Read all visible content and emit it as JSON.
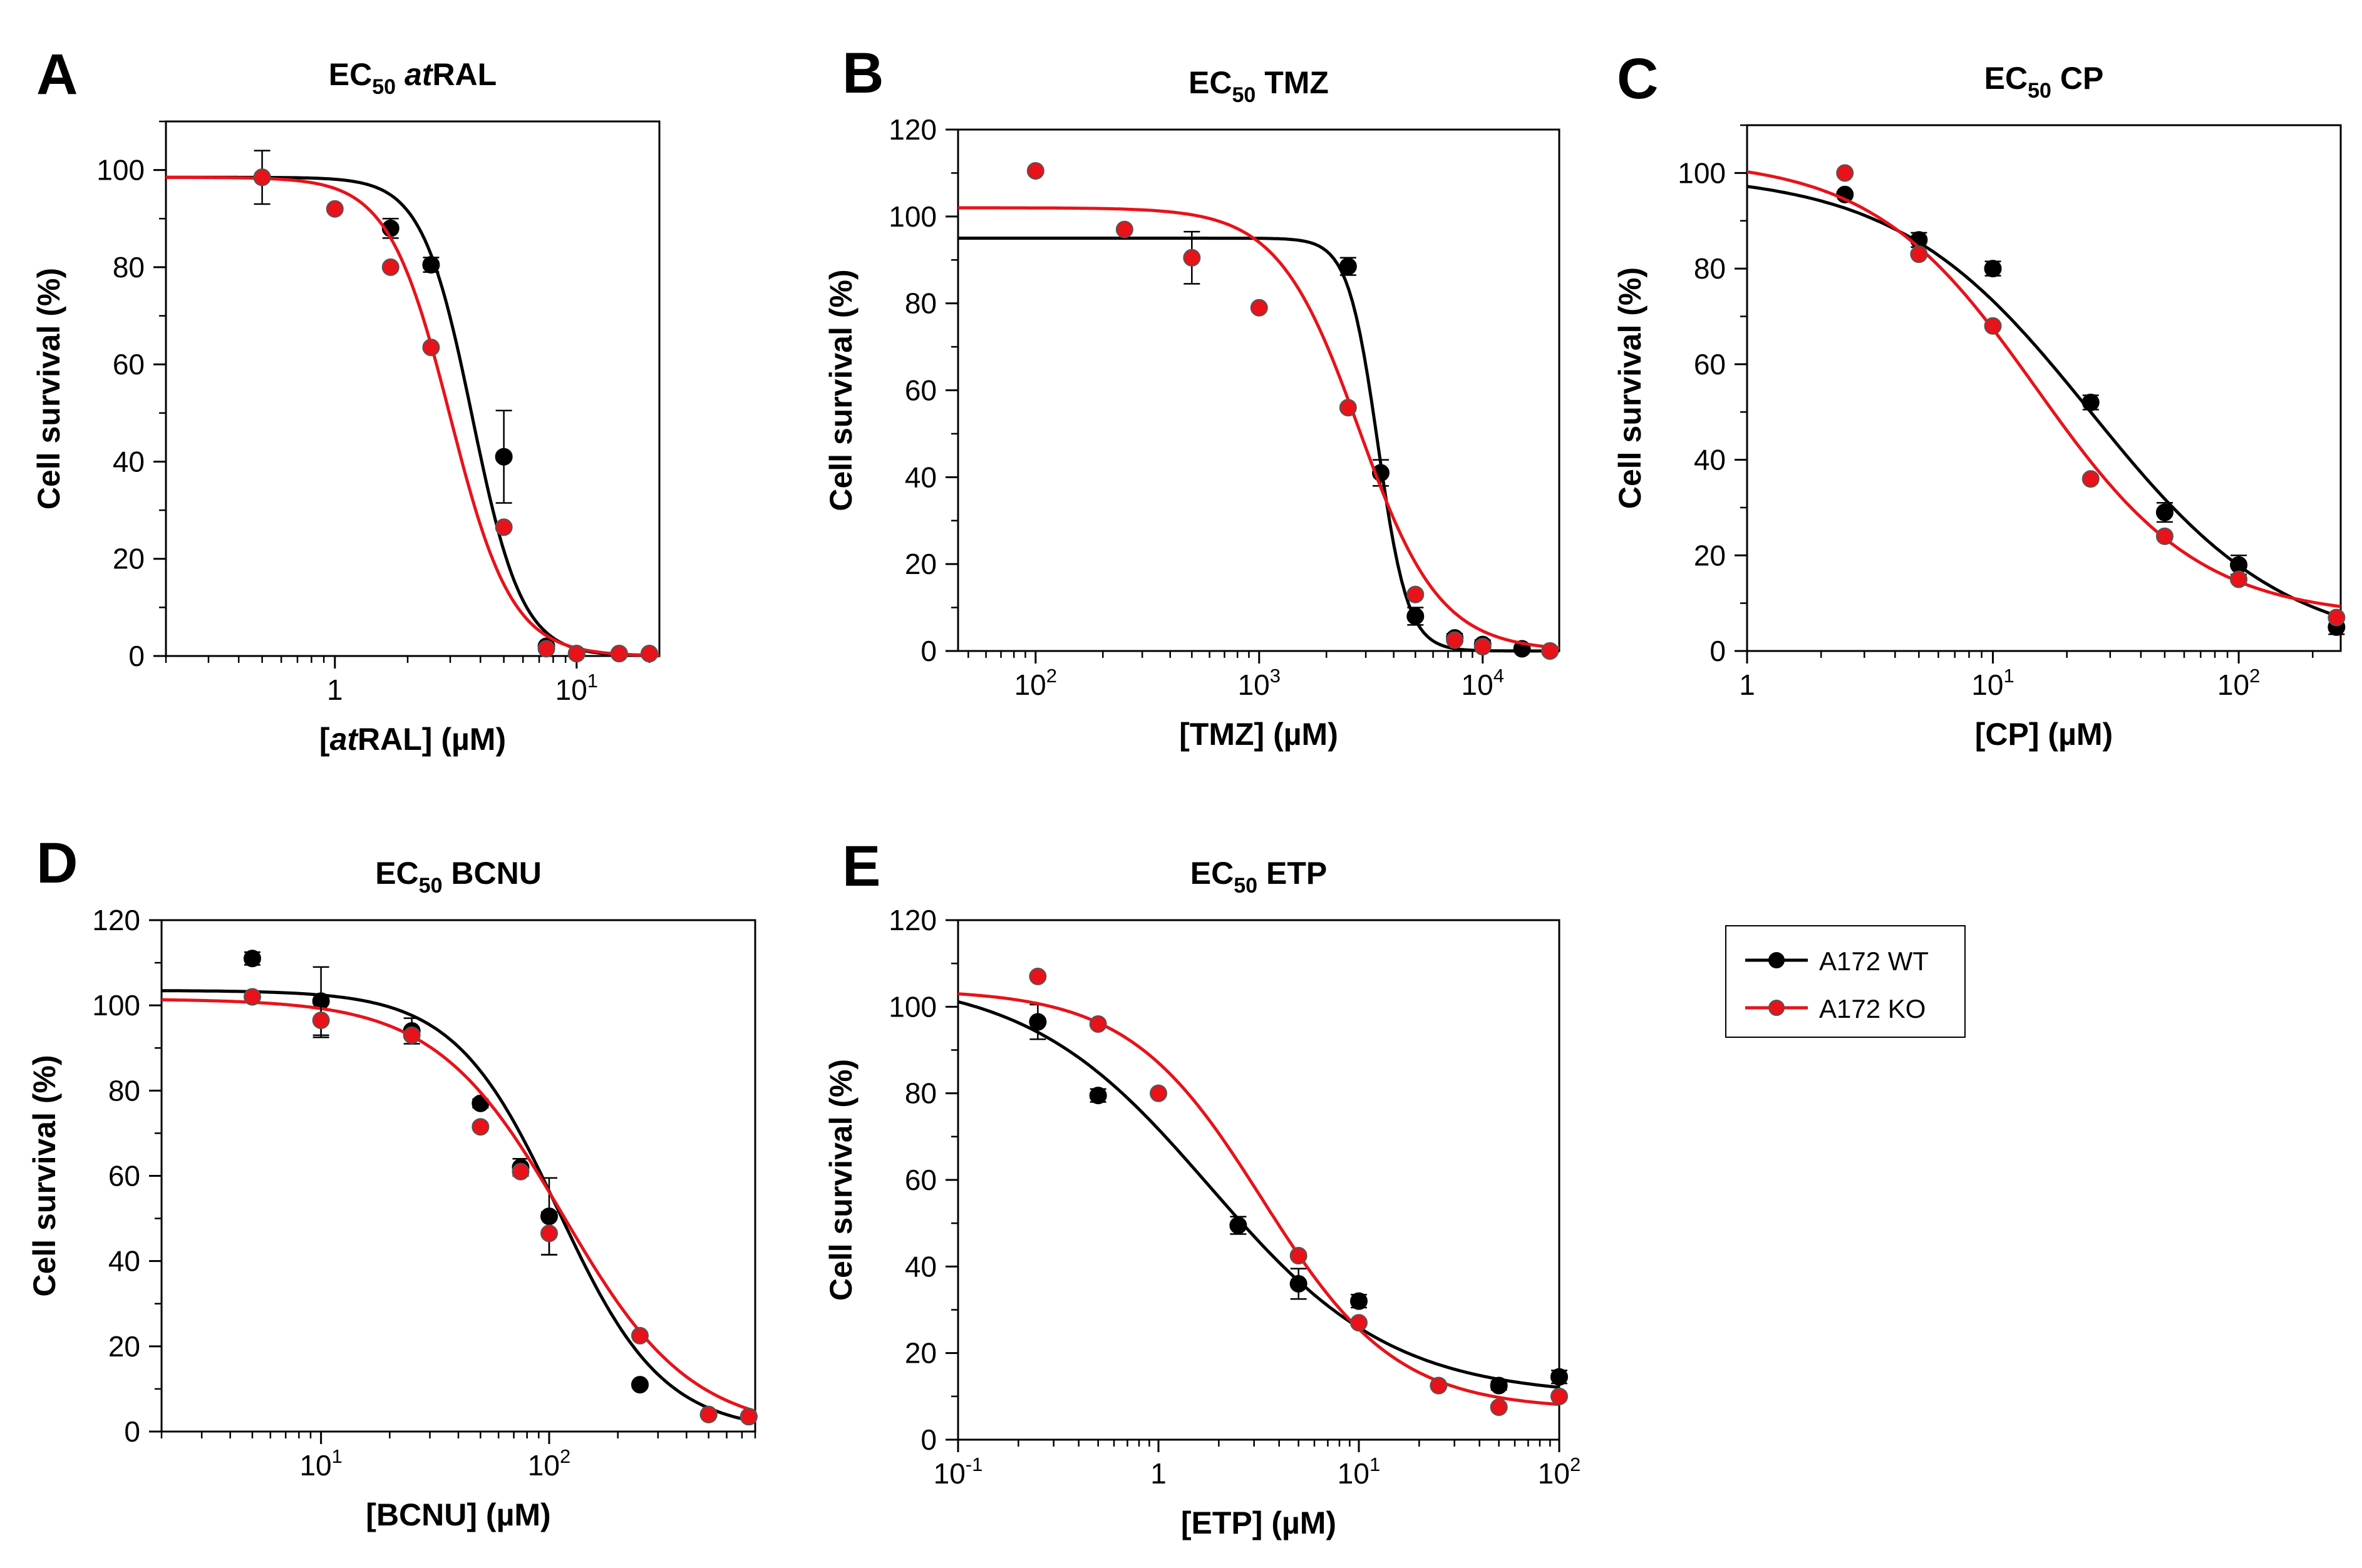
{
  "legend": {
    "entries": [
      {
        "label": "A172 WT",
        "color": "#000000"
      },
      {
        "label": "A172 KO",
        "color": "#e8121a"
      }
    ]
  },
  "chart_data": [
    {
      "panel": "A",
      "type": "scatter",
      "title": {
        "main": "EC",
        "sub": "50",
        "rest": " ",
        "drug": "at",
        "drug_rest": "RAL"
      },
      "xlabel": {
        "open": "[",
        "drug": "at",
        "rest": "RAL] (µM)"
      },
      "ylabel": "Cell survival (%)",
      "xscale": "log",
      "xlim": [
        0.2,
        22
      ],
      "ylim": [
        0,
        110
      ],
      "yticks": [
        0,
        20,
        40,
        60,
        80,
        100
      ],
      "xticks": [
        {
          "value": 1,
          "label": "1",
          "exp": ""
        },
        {
          "value": 10,
          "label": "10",
          "exp": "1"
        }
      ],
      "series": [
        {
          "name": "A172 WT",
          "color": "#000000",
          "x": [
            0.5,
            1.7,
            2.5,
            5.0,
            7.5,
            10,
            15,
            20
          ],
          "y": [
            98.5,
            88,
            80.5,
            41,
            2,
            0.5,
            0.5,
            0.5
          ],
          "err": [
            0,
            2,
            1.5,
            9.5,
            0,
            0,
            0,
            0
          ],
          "fit": {
            "top": 98.5,
            "bottom": 0,
            "ec50": 3.7,
            "hill": 4.2
          }
        },
        {
          "name": "A172 KO",
          "color": "#e8121a",
          "x": [
            0.5,
            1.0,
            1.7,
            2.5,
            5.0,
            7.5,
            10,
            15,
            20
          ],
          "y": [
            98.5,
            92,
            80,
            63.5,
            26.5,
            1.5,
            0.5,
            0.5,
            0.5
          ],
          "err": [
            5.5,
            0,
            0,
            0,
            0,
            0,
            0,
            0,
            0
          ],
          "fit": {
            "top": 98.5,
            "bottom": 0,
            "ec50": 3.0,
            "hill": 3.4
          }
        }
      ]
    },
    {
      "panel": "B",
      "type": "scatter",
      "title": {
        "main": "EC",
        "sub": "50",
        "rest": " TMZ",
        "drug": "",
        "drug_rest": ""
      },
      "xlabel": {
        "open": "",
        "drug": "",
        "rest": "[TMZ] (µM)"
      },
      "ylabel": "Cell survival (%)",
      "xscale": "log",
      "xlim": [
        45,
        22000
      ],
      "ylim": [
        0,
        120
      ],
      "yticks": [
        0,
        20,
        40,
        60,
        80,
        100,
        120
      ],
      "xticks": [
        {
          "value": 100,
          "label": "10",
          "exp": "2"
        },
        {
          "value": 1000,
          "label": "10",
          "exp": "3"
        },
        {
          "value": 10000,
          "label": "10",
          "exp": "4"
        }
      ],
      "series": [
        {
          "name": "A172 WT",
          "color": "#000000",
          "x": [
            2500,
            3500,
            5000,
            7500,
            10000,
            15000,
            20000
          ],
          "y": [
            88.5,
            41,
            8,
            3,
            1.5,
            0.5,
            0
          ],
          "err": [
            2,
            3,
            2,
            1,
            1,
            0,
            0
          ],
          "fit": {
            "top": 95,
            "bottom": 0,
            "ec50": 3400,
            "hill": 6.5
          }
        },
        {
          "name": "A172 KO",
          "color": "#e8121a",
          "x": [
            100,
            250,
            500,
            1000,
            2500,
            5000,
            7500,
            10000,
            20000
          ],
          "y": [
            110.5,
            97,
            90.5,
            79,
            56,
            13,
            2.5,
            1,
            0
          ],
          "err": [
            0,
            0,
            6,
            0,
            0,
            0,
            0,
            0,
            0
          ],
          "fit": {
            "top": 102,
            "bottom": 0,
            "ec50": 2800,
            "hill": 2.4
          }
        }
      ]
    },
    {
      "panel": "C",
      "type": "scatter",
      "title": {
        "main": "EC",
        "sub": "50",
        "rest": " CP",
        "drug": "",
        "drug_rest": ""
      },
      "xlabel": {
        "open": "",
        "drug": "",
        "rest": "[CP] (µM)"
      },
      "ylabel": "Cell survival (%)",
      "xscale": "log",
      "xlim": [
        1,
        260
      ],
      "ylim": [
        0,
        110
      ],
      "yticks": [
        0,
        20,
        40,
        60,
        80,
        100
      ],
      "xticks": [
        {
          "value": 1,
          "label": "1",
          "exp": ""
        },
        {
          "value": 10,
          "label": "10",
          "exp": "1"
        },
        {
          "value": 100,
          "label": "10",
          "exp": "2"
        }
      ],
      "series": [
        {
          "name": "A172 WT",
          "color": "#000000",
          "x": [
            2.5,
            5,
            10,
            25,
            50,
            100,
            250
          ],
          "y": [
            95.5,
            86,
            80,
            52,
            29,
            18,
            5
          ],
          "err": [
            0,
            1.5,
            1.5,
            1.5,
            2,
            2,
            1.5
          ],
          "fit": {
            "top": 100,
            "bottom": 0,
            "ec50": 25,
            "hill": 1.1
          }
        },
        {
          "name": "A172 KO",
          "color": "#e8121a",
          "x": [
            2.5,
            5,
            10,
            25,
            50,
            100,
            250
          ],
          "y": [
            100,
            83,
            68,
            36,
            24,
            15,
            7
          ],
          "err": [
            0,
            0,
            0,
            0,
            0,
            0,
            0
          ],
          "fit": {
            "top": 103,
            "bottom": 7,
            "ec50": 15,
            "hill": 1.3
          }
        }
      ]
    },
    {
      "panel": "D",
      "type": "scatter",
      "title": {
        "main": "EC",
        "sub": "50",
        "rest": " BCNU",
        "drug": "",
        "drug_rest": ""
      },
      "xlabel": {
        "open": "",
        "drug": "",
        "rest": "[BCNU] (µM)"
      },
      "ylabel": "Cell survival (%)",
      "xscale": "log",
      "xlim": [
        2,
        800
      ],
      "ylim": [
        0,
        120
      ],
      "yticks": [
        0,
        20,
        40,
        60,
        80,
        100,
        120
      ],
      "xticks": [
        {
          "value": 10,
          "label": "10",
          "exp": "1"
        },
        {
          "value": 100,
          "label": "10",
          "exp": "2"
        }
      ],
      "series": [
        {
          "name": "A172 WT",
          "color": "#000000",
          "x": [
            5,
            10,
            25,
            50,
            75,
            100,
            250,
            500,
            750
          ],
          "y": [
            111,
            101,
            94,
            77,
            62,
            50.5,
            11,
            4,
            3.5
          ],
          "err": [
            1.5,
            8,
            3,
            1,
            2,
            9,
            0,
            0,
            0
          ],
          "fit": {
            "top": 103.5,
            "bottom": 0,
            "ec50": 110,
            "hill": 1.9
          }
        },
        {
          "name": "A172 KO",
          "color": "#e8121a",
          "x": [
            5,
            10,
            25,
            50,
            75,
            100,
            250,
            500,
            750
          ],
          "y": [
            102,
            96.5,
            93,
            71.5,
            61,
            46.5,
            22.5,
            4,
            3.5
          ],
          "err": [
            0,
            4,
            0,
            0,
            0,
            5,
            0,
            0,
            0
          ],
          "fit": {
            "top": 101.5,
            "bottom": 0,
            "ec50": 115,
            "hill": 1.55
          }
        }
      ]
    },
    {
      "panel": "E",
      "type": "scatter",
      "title": {
        "main": "EC",
        "sub": "50",
        "rest": " ETP",
        "drug": "",
        "drug_rest": ""
      },
      "xlabel": {
        "open": "",
        "drug": "",
        "rest": "[ETP] (µM)"
      },
      "ylabel": "Cell survival (%)",
      "xscale": "log",
      "xlim": [
        0.1,
        100
      ],
      "ylim": [
        0,
        120
      ],
      "yticks": [
        0,
        20,
        40,
        60,
        80,
        100,
        120
      ],
      "xticks": [
        {
          "value": 0.1,
          "label": "10",
          "exp": "-1"
        },
        {
          "value": 1,
          "label": "1",
          "exp": ""
        },
        {
          "value": 10,
          "label": "10",
          "exp": "1"
        },
        {
          "value": 100,
          "label": "10",
          "exp": "2"
        }
      ],
      "series": [
        {
          "name": "A172 WT",
          "color": "#000000",
          "x": [
            0.25,
            0.5,
            2.5,
            5,
            10,
            50,
            100
          ],
          "y": [
            96.5,
            79.5,
            49.5,
            36,
            32,
            12.5,
            14.5
          ],
          "err": [
            4,
            1.5,
            2,
            3.5,
            1.5,
            1,
            1.5
          ],
          "fit": {
            "top": 107,
            "bottom": 10,
            "ec50": 1.8,
            "hill": 0.95
          }
        },
        {
          "name": "A172 KO",
          "color": "#e8121a",
          "x": [
            0.25,
            0.5,
            1,
            5,
            10,
            25,
            50,
            100
          ],
          "y": [
            107,
            96,
            80,
            42.5,
            27,
            12.5,
            7.5,
            10
          ],
          "err": [
            0,
            0,
            0,
            0,
            0,
            0,
            0,
            0
          ],
          "fit": {
            "top": 104,
            "bottom": 7,
            "ec50": 3.3,
            "hill": 1.3
          }
        }
      ]
    }
  ]
}
